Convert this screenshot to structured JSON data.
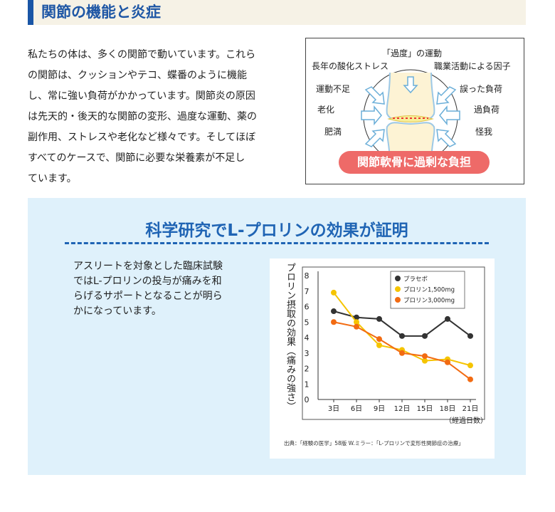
{
  "header": {
    "title": "関節の機能と炎症"
  },
  "intro": {
    "lines": [
      "私たちの体は、多くの関節で動いています。これら",
      "の関節は、クッションやテコ、蝶番のように機能",
      "し、常に強い負荷がかかっています。関節炎の原因",
      "は先天的・後天的な関節の変形、過度な運動、薬の",
      "副作用、ストレスや老化など様々です。そしてほぼ",
      "すべてのケースで、関節に必要な栄養素が不足し",
      "ています。"
    ]
  },
  "diagram": {
    "top": "「過度」の運動",
    "left_top": "長年の酸化ストレス",
    "right_top": "職業活動による因子",
    "left": [
      "運動不足",
      "老化",
      "肥満"
    ],
    "right": [
      "誤った負荷",
      "過負荷",
      "怪我"
    ],
    "burden": "関節軟骨に過剰な負担"
  },
  "research": {
    "title": "科学研究でL-プロリンの効果が証明",
    "text": [
      "アスリートを対象とした臨床試験",
      "ではL-プロリンの投与が痛みを和",
      "らげるサポートとなることが明ら",
      "かになっています。"
    ],
    "source": "出典：「経験の医学」58版 W.ミラー：「L-プロリンで変形性関節症の治療」"
  },
  "chart_data": {
    "type": "line",
    "x": [
      "3日",
      "6日",
      "9日",
      "12日",
      "15日",
      "18日",
      "21日"
    ],
    "xlabel": "（経過日数）",
    "ylabel": "プロリン摂取の効果（痛みの強さ）",
    "ylim": [
      0,
      8
    ],
    "yticks": [
      "0",
      "1",
      "2",
      "3",
      "4",
      "5",
      "6",
      "7",
      "8"
    ],
    "legend_position": "top-right",
    "series": [
      {
        "name": "プラセボ",
        "color": "#333333",
        "values": [
          5.7,
          5.3,
          5.2,
          4.1,
          4.1,
          5.2,
          4.1
        ]
      },
      {
        "name": "プロリン1,500mg",
        "color": "#f5c400",
        "values": [
          6.9,
          5.0,
          3.5,
          3.2,
          2.5,
          2.6,
          2.2
        ]
      },
      {
        "name": "プロリン3,000mg",
        "color": "#f26b12",
        "values": [
          5.0,
          4.7,
          3.9,
          3.0,
          2.8,
          2.4,
          1.3
        ]
      }
    ]
  }
}
